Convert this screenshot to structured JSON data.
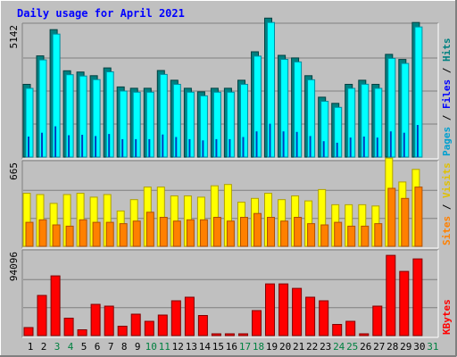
{
  "title": "Daily usage for April 2021",
  "colors": {
    "background": "#c0c0c0",
    "title": "#0000ff",
    "hits": "#00ffff",
    "hits_edge": "#0099b3",
    "files": "#008080",
    "pages": "#00a0d0",
    "visits": "#ffff00",
    "visits_edge": "#c8b400",
    "sites": "#ff8000",
    "kbytes": "#ff0000",
    "weekend_label": "#008040"
  },
  "chart_data": [
    {
      "type": "bar",
      "title": "Daily usage for April 2021",
      "max_label": "5142",
      "legend": {
        "pages": "Pages",
        "files": "Files",
        "hits": "Hits"
      },
      "categories": [
        "1",
        "2",
        "3",
        "4",
        "5",
        "6",
        "7",
        "8",
        "9",
        "10",
        "11",
        "12",
        "13",
        "14",
        "15",
        "16",
        "17",
        "18",
        "19",
        "20",
        "21",
        "22",
        "23",
        "24",
        "25",
        "26",
        "27",
        "28",
        "29",
        "30"
      ],
      "series": [
        {
          "name": "Hits",
          "values": [
            2680,
            3780,
            4640,
            3220,
            3150,
            3030,
            3330,
            2520,
            2520,
            2520,
            3230,
            2780,
            2520,
            2360,
            2520,
            2520,
            2780,
            3800,
            5100,
            3780,
            3700,
            2950,
            2130,
            1930,
            2680,
            2840,
            2680,
            3800,
            3630,
            4900
          ]
        },
        {
          "name": "Files",
          "values": [
            2830,
            3940,
            4960,
            3360,
            3310,
            3170,
            3470,
            2730,
            2680,
            2680,
            3370,
            2990,
            2680,
            2540,
            2680,
            2680,
            2990,
            4100,
            5410,
            3960,
            3860,
            3170,
            2330,
            2090,
            2830,
            2990,
            2830,
            4000,
            3800,
            5240
          ]
        },
        {
          "name": "Pages",
          "values": [
            800,
            950,
            1200,
            850,
            870,
            820,
            900,
            700,
            700,
            700,
            880,
            780,
            700,
            650,
            700,
            700,
            780,
            1000,
            1300,
            1000,
            980,
            820,
            620,
            560,
            760,
            800,
            760,
            1000,
            950,
            1250
          ]
        }
      ]
    },
    {
      "type": "bar",
      "max_label": "665",
      "legend": {
        "sites": "Sites",
        "visits": "Visits"
      },
      "categories": [
        "1",
        "2",
        "3",
        "4",
        "5",
        "6",
        "7",
        "8",
        "9",
        "10",
        "11",
        "12",
        "13",
        "14",
        "15",
        "16",
        "17",
        "18",
        "19",
        "20",
        "21",
        "22",
        "23",
        "24",
        "25",
        "26",
        "27",
        "28",
        "29",
        "30"
      ],
      "series": [
        {
          "name": "Visits",
          "values": [
            420,
            410,
            340,
            410,
            420,
            390,
            410,
            280,
            370,
            470,
            470,
            400,
            400,
            390,
            480,
            490,
            350,
            380,
            420,
            370,
            400,
            360,
            450,
            330,
            330,
            330,
            320,
            700,
            510,
            610
          ]
        },
        {
          "name": "Sites",
          "values": [
            190,
            210,
            170,
            160,
            210,
            190,
            190,
            180,
            200,
            270,
            230,
            200,
            210,
            210,
            230,
            200,
            230,
            260,
            230,
            200,
            230,
            180,
            170,
            190,
            160,
            160,
            180,
            460,
            380,
            470
          ]
        }
      ]
    },
    {
      "type": "bar",
      "max_label": "94096",
      "legend": {
        "kbytes": "KBytes"
      },
      "categories": [
        "1",
        "2",
        "3",
        "4",
        "5",
        "6",
        "7",
        "8",
        "9",
        "10",
        "11",
        "12",
        "13",
        "14",
        "15",
        "16",
        "17",
        "18",
        "19",
        "20",
        "21",
        "22",
        "23",
        "24",
        "25",
        "26",
        "27",
        "28",
        "29",
        "30"
      ],
      "series": [
        {
          "name": "KBytes",
          "values": [
            9000,
            45000,
            67000,
            19500,
            6500,
            35000,
            33000,
            10500,
            24000,
            16000,
            23000,
            39000,
            43000,
            22500,
            0,
            0,
            0,
            28000,
            58000,
            58000,
            53000,
            43000,
            39000,
            12500,
            16000,
            0,
            33000,
            90000,
            72000,
            86000
          ]
        }
      ]
    }
  ],
  "x_labels": [
    {
      "text": "1",
      "weekend": false
    },
    {
      "text": "2",
      "weekend": false
    },
    {
      "text": "3",
      "weekend": true
    },
    {
      "text": "4",
      "weekend": true
    },
    {
      "text": "5",
      "weekend": false
    },
    {
      "text": "6",
      "weekend": false
    },
    {
      "text": "7",
      "weekend": false
    },
    {
      "text": "8",
      "weekend": false
    },
    {
      "text": "9",
      "weekend": false
    },
    {
      "text": "10",
      "weekend": true
    },
    {
      "text": "11",
      "weekend": true
    },
    {
      "text": "12",
      "weekend": false
    },
    {
      "text": "13",
      "weekend": false
    },
    {
      "text": "14",
      "weekend": false
    },
    {
      "text": "15",
      "weekend": false
    },
    {
      "text": "16",
      "weekend": false
    },
    {
      "text": "17",
      "weekend": true
    },
    {
      "text": "18",
      "weekend": true
    },
    {
      "text": "19",
      "weekend": false
    },
    {
      "text": "20",
      "weekend": false
    },
    {
      "text": "21",
      "weekend": false
    },
    {
      "text": "22",
      "weekend": false
    },
    {
      "text": "23",
      "weekend": false
    },
    {
      "text": "24",
      "weekend": true
    },
    {
      "text": "25",
      "weekend": true
    },
    {
      "text": "26",
      "weekend": false
    },
    {
      "text": "27",
      "weekend": false
    },
    {
      "text": "28",
      "weekend": false
    },
    {
      "text": "29",
      "weekend": false
    },
    {
      "text": "30",
      "weekend": false
    },
    {
      "text": "31",
      "weekend": true
    }
  ]
}
